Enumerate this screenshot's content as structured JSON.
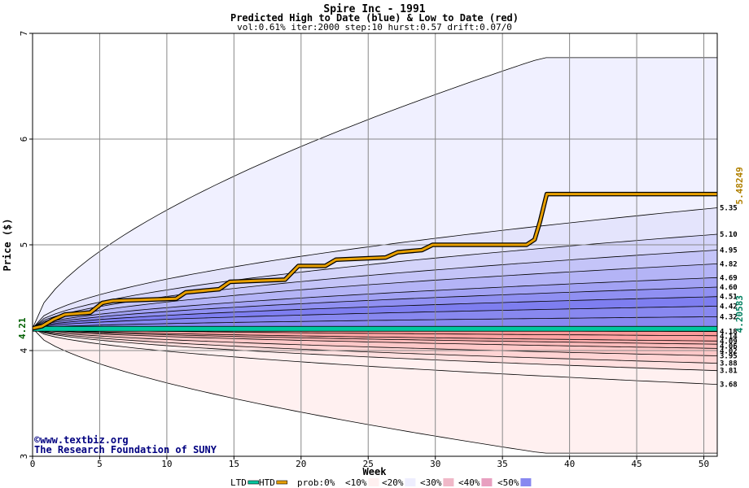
{
  "chart_data": {
    "type": "area",
    "title": "Spire Inc - 1991",
    "subtitle": "Predicted High to Date (blue) &  Low to Date (red)",
    "params": "vol:0.61% iter:2000 step:10 hurst:0.57 drift:0.07/0",
    "xlabel": "Week",
    "ylabel": "Price ($)",
    "xlim": [
      0,
      51
    ],
    "ylim": [
      3,
      7
    ],
    "xticks": [
      0,
      5,
      10,
      15,
      20,
      25,
      30,
      35,
      40,
      45,
      50
    ],
    "yticks": [
      3,
      4,
      5,
      6,
      7
    ],
    "start_price": 4.21,
    "start_label": "4.21",
    "htd_label": "5.48249",
    "ltd_label": "4.20583",
    "htd_value": 5.48249,
    "ltd_value": 4.20583,
    "high_levels": [
      {
        "label": "5.35",
        "value": 5.35
      },
      {
        "label": "5.10",
        "value": 5.1
      },
      {
        "label": "4.95",
        "value": 4.95
      },
      {
        "label": "4.82",
        "value": 4.82
      },
      {
        "label": "4.69",
        "value": 4.69
      },
      {
        "label": "4.60",
        "value": 4.6
      },
      {
        "label": "4.51",
        "value": 4.51
      },
      {
        "label": "4.42",
        "value": 4.42
      },
      {
        "label": "4.32",
        "value": 4.32
      }
    ],
    "high_max": 6.77,
    "low_levels": [
      {
        "label": "4.18",
        "value": 4.18
      },
      {
        "label": "4.14",
        "value": 4.14
      },
      {
        "label": "4.09",
        "value": 4.09
      },
      {
        "label": "4.06",
        "value": 4.06
      },
      {
        "label": "4.02",
        "value": 4.02
      },
      {
        "label": "3.95",
        "value": 3.95
      },
      {
        "label": "3.88",
        "value": 3.88
      },
      {
        "label": "3.81",
        "value": 3.81
      },
      {
        "label": "3.68",
        "value": 3.68
      }
    ],
    "low_min": 3.03,
    "htd_series": {
      "x": [
        0,
        0.7,
        1.5,
        2.4,
        4.3,
        5.2,
        6,
        10.7,
        11.4,
        13.9,
        14.7,
        18.8,
        19.8,
        21.8,
        22.6,
        26.3,
        27.2,
        29,
        29.8,
        36.8,
        37.4,
        37.8,
        38.3,
        51
      ],
      "y": [
        4.21,
        4.23,
        4.29,
        4.34,
        4.36,
        4.45,
        4.47,
        4.49,
        4.55,
        4.58,
        4.65,
        4.67,
        4.8,
        4.8,
        4.86,
        4.88,
        4.93,
        4.95,
        5.0,
        5.0,
        5.05,
        5.22,
        5.48,
        5.48
      ]
    },
    "ltd_series": {
      "x": [
        0,
        51
      ],
      "y": [
        4.2058,
        4.2058
      ]
    },
    "colors": {
      "high_bands": [
        "#f0f0ff",
        "#e4e4fc",
        "#d4d4fa",
        "#c4c4f8",
        "#b4b4f6",
        "#a2a2f4",
        "#9090f2",
        "#7e7ef0",
        "#8888f0"
      ],
      "low_bands": [
        "#ff9a9a",
        "#ffa4a4",
        "#ffb0b0",
        "#ffbcbc",
        "#ffc8c8",
        "#ffd4d4",
        "#ffe0e0",
        "#fff0f0"
      ],
      "htd": "#e8a000",
      "ltd": "#00c8a0",
      "grid": "#888888",
      "credit": "#000080"
    },
    "legend": [
      "LTD",
      "HTD",
      "prob:0%",
      "<10%",
      "<20%",
      "<30%",
      "<40%",
      "<50%"
    ],
    "legend_colors": [
      "#00c8a0",
      "#e8a000",
      "#ffffff",
      "#fff0f0",
      "#eeeefe",
      "#f0b8c8",
      "#e8a0c0",
      "#8888f0"
    ],
    "credit_line1": "©www.textbiz.org",
    "credit_line2": "The Research Foundation of SUNY"
  }
}
